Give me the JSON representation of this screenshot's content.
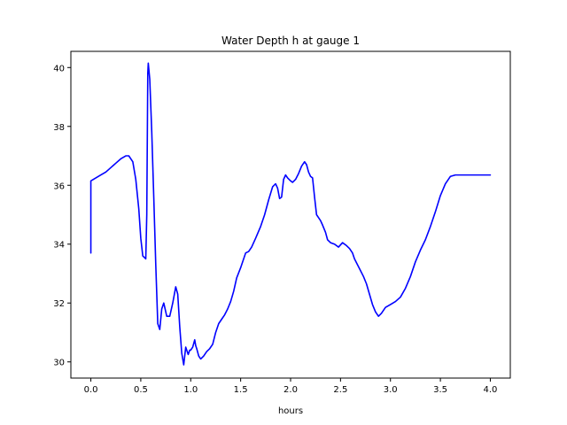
{
  "chart_data": {
    "type": "line",
    "title": "Water Depth h at gauge 1",
    "xlabel": "hours",
    "ylabel": "",
    "xlim": [
      -0.2,
      4.2
    ],
    "ylim": [
      29.45,
      40.55
    ],
    "xticks": [
      0.0,
      0.5,
      1.0,
      1.5,
      2.0,
      2.5,
      3.0,
      3.5,
      4.0
    ],
    "xtick_labels": [
      "0.0",
      "0.5",
      "1.0",
      "1.5",
      "2.0",
      "2.5",
      "3.0",
      "3.5",
      "4.0"
    ],
    "yticks": [
      30,
      32,
      34,
      36,
      38,
      40
    ],
    "ytick_labels": [
      "30",
      "32",
      "34",
      "36",
      "38",
      "40"
    ],
    "grid": false,
    "series": [
      {
        "color": "#0000ff",
        "x": [
          0.0,
          0.0,
          0.05,
          0.1,
          0.15,
          0.2,
          0.25,
          0.3,
          0.35,
          0.38,
          0.42,
          0.45,
          0.48,
          0.5,
          0.52,
          0.55,
          0.56,
          0.57,
          0.575,
          0.59,
          0.61,
          0.63,
          0.65,
          0.67,
          0.69,
          0.71,
          0.73,
          0.76,
          0.79,
          0.82,
          0.85,
          0.87,
          0.89,
          0.91,
          0.93,
          0.95,
          0.96,
          0.975,
          0.99,
          1.0,
          1.02,
          1.04,
          1.05,
          1.06,
          1.08,
          1.1,
          1.13,
          1.16,
          1.19,
          1.22,
          1.25,
          1.28,
          1.31,
          1.34,
          1.37,
          1.4,
          1.43,
          1.46,
          1.5,
          1.53,
          1.55,
          1.58,
          1.61,
          1.65,
          1.7,
          1.74,
          1.78,
          1.82,
          1.85,
          1.87,
          1.89,
          1.91,
          1.93,
          1.95,
          1.97,
          2.0,
          2.02,
          2.05,
          2.08,
          2.11,
          2.14,
          2.16,
          2.18,
          2.2,
          2.22,
          2.24,
          2.26,
          2.28,
          2.3,
          2.32,
          2.35,
          2.37,
          2.4,
          2.44,
          2.48,
          2.52,
          2.56,
          2.59,
          2.62,
          2.64,
          2.67,
          2.7,
          2.73,
          2.76,
          2.79,
          2.82,
          2.85,
          2.88,
          2.91,
          2.95,
          3.0,
          3.05,
          3.1,
          3.15,
          3.2,
          3.25,
          3.3,
          3.35,
          3.4,
          3.45,
          3.5,
          3.55,
          3.6,
          3.65,
          3.7,
          3.75,
          3.8,
          3.85,
          3.9,
          3.95,
          4.0
        ],
        "y": [
          33.7,
          36.15,
          36.25,
          36.35,
          36.45,
          36.6,
          36.75,
          36.9,
          37.0,
          37.0,
          36.8,
          36.2,
          35.2,
          34.2,
          33.6,
          33.5,
          35.0,
          39.8,
          40.15,
          39.6,
          37.8,
          35.6,
          33.3,
          31.3,
          31.1,
          31.8,
          32.0,
          31.55,
          31.55,
          32.0,
          32.55,
          32.3,
          31.2,
          30.3,
          29.9,
          30.5,
          30.4,
          30.25,
          30.4,
          30.4,
          30.5,
          30.75,
          30.55,
          30.45,
          30.2,
          30.1,
          30.2,
          30.35,
          30.45,
          30.6,
          31.0,
          31.3,
          31.45,
          31.6,
          31.8,
          32.05,
          32.4,
          32.85,
          33.2,
          33.5,
          33.7,
          33.75,
          33.9,
          34.2,
          34.6,
          35.0,
          35.5,
          35.95,
          36.05,
          35.9,
          35.55,
          35.6,
          36.2,
          36.35,
          36.25,
          36.15,
          36.1,
          36.2,
          36.4,
          36.65,
          36.8,
          36.7,
          36.45,
          36.3,
          36.25,
          35.6,
          35.0,
          34.9,
          34.8,
          34.65,
          34.4,
          34.15,
          34.05,
          34.0,
          33.9,
          34.05,
          33.95,
          33.85,
          33.7,
          33.5,
          33.3,
          33.1,
          32.9,
          32.65,
          32.3,
          31.95,
          31.7,
          31.55,
          31.65,
          31.85,
          31.95,
          32.05,
          32.2,
          32.5,
          32.9,
          33.4,
          33.8,
          34.15,
          34.6,
          35.1,
          35.65,
          36.05,
          36.3,
          36.35,
          36.35,
          36.35,
          36.35,
          36.35,
          36.35,
          36.35,
          36.35
        ]
      }
    ]
  }
}
